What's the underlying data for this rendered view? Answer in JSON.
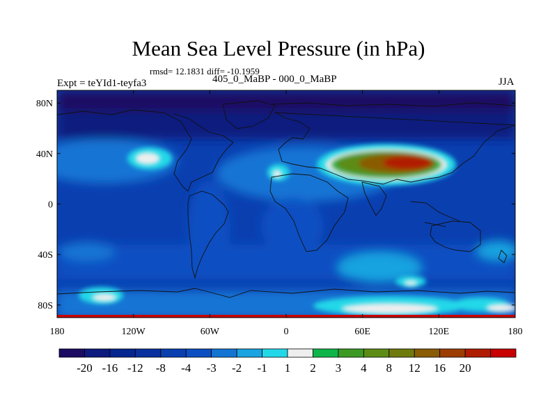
{
  "title": "Mean Sea Level Pressure (in hPa)",
  "stats": "rmsd= 12.1831 diff= -10.1959",
  "left_label": "Expt = teYId1-teyfa3",
  "center_label": "405_0_MaBP - 000_0_MaBP",
  "right_label": "JJA",
  "chart_data": {
    "type": "heatmap",
    "title": "Mean Sea Level Pressure (in hPa)",
    "x_ticks": [
      "180",
      "120W",
      "60W",
      "0",
      "60E",
      "120E",
      "180"
    ],
    "x_tick_values": [
      -180,
      -120,
      -60,
      0,
      60,
      120,
      180
    ],
    "y_ticks": [
      "80N",
      "40N",
      "0",
      "40S",
      "80S"
    ],
    "y_tick_values": [
      80,
      40,
      0,
      -40,
      -80
    ],
    "xlim": [
      -180,
      180
    ],
    "ylim": [
      -90,
      90
    ],
    "colorbar": {
      "labels": [
        "-20",
        "-16",
        "-12",
        "-8",
        "-4",
        "-3",
        "-2",
        "-1",
        "1",
        "2",
        "3",
        "4",
        "8",
        "12",
        "16",
        "20"
      ],
      "colors": [
        "#1c0a63",
        "#0d1a7e",
        "#06268f",
        "#08309f",
        "#0a3fb0",
        "#0c4fc2",
        "#1275d4",
        "#19a3e0",
        "#22d8e8",
        "#eeeeee",
        "#10b54a",
        "#3c9a24",
        "#5c8c16",
        "#6f7a0c",
        "#8a5c06",
        "#9c3e03",
        "#b01c02",
        "#c80000"
      ]
    },
    "features": [
      {
        "name": "background",
        "lon": [
          -180,
          180
        ],
        "lat": [
          -90,
          90
        ],
        "value": -10
      },
      {
        "name": "arctic-low",
        "lon": [
          -180,
          180
        ],
        "lat": [
          55,
          90
        ],
        "value": -18
      },
      {
        "name": "mid-pacific-high",
        "lon": [
          -120,
          -106
        ],
        "lat": [
          37,
          44
        ],
        "value": 1
      },
      {
        "name": "atlantic-high",
        "lon": [
          -13,
          -4
        ],
        "lat": [
          24,
          31
        ],
        "value": 1
      },
      {
        "name": "asian-high",
        "lon": [
          35,
          145
        ],
        "lat": [
          22,
          50
        ],
        "value": 16
      },
      {
        "name": "south-pacific-spot",
        "lon": [
          -145,
          -125
        ],
        "lat": [
          -73,
          -65
        ],
        "value": 1
      },
      {
        "name": "antarctic-high",
        "lon": [
          30,
          170
        ],
        "lat": [
          -89,
          -70
        ],
        "value": 1
      },
      {
        "name": "southern-ocean-high",
        "lon": [
          82,
          100
        ],
        "lat": [
          -68,
          -60
        ],
        "value": 1
      }
    ]
  }
}
